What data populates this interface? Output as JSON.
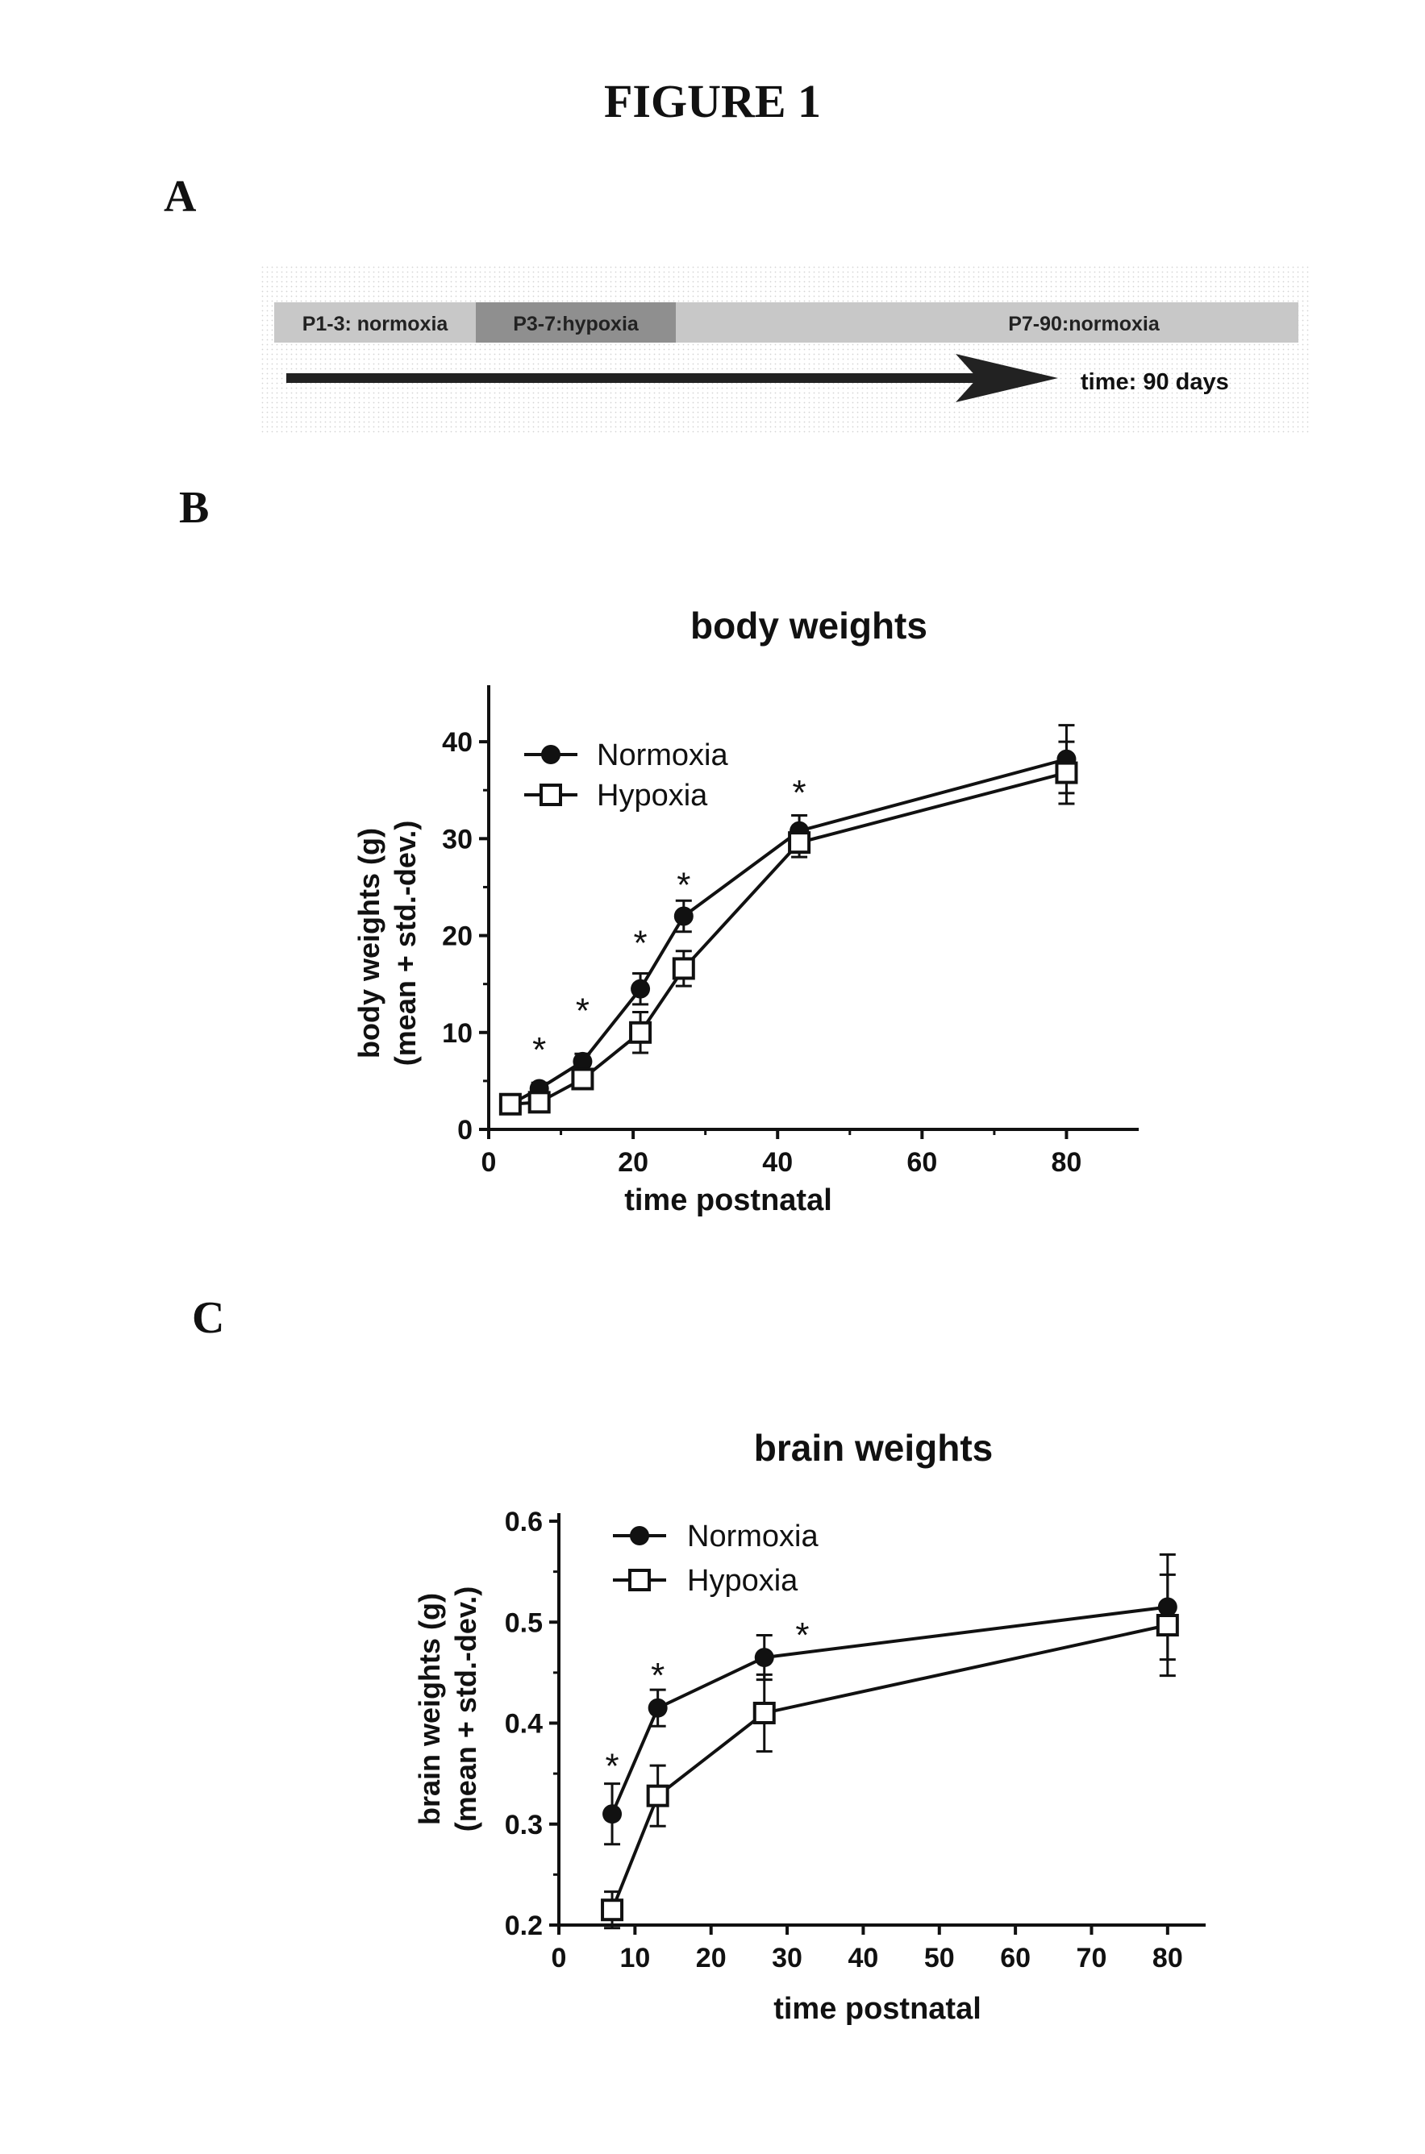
{
  "figure": {
    "title": "FIGURE 1"
  },
  "panels": {
    "a": "A",
    "b": "B",
    "c": "C"
  },
  "timeline": {
    "segments": [
      {
        "label": "P1-3: normoxia",
        "start_day": 1,
        "end_day": 3,
        "shade": "#c8c8c8"
      },
      {
        "label": "P3-7:hypoxia",
        "start_day": 3,
        "end_day": 7,
        "shade": "#8f8f8f"
      },
      {
        "label": "P7-90:normoxia",
        "start_day": 7,
        "end_day": 90,
        "shade": "#c8c8c8"
      }
    ],
    "arrow_label": "time: 90 days"
  },
  "chart_data": [
    {
      "type": "line",
      "title": "body weights",
      "xlabel": "time postnatal",
      "ylabel_lines": [
        "body weights (g)",
        "(mean + std.-dev.)"
      ],
      "xlim": [
        0,
        90
      ],
      "ylim": [
        0,
        45
      ],
      "xticks": [
        0,
        20,
        40,
        60,
        80
      ],
      "yticks": [
        0,
        10,
        20,
        30,
        40
      ],
      "legend_position": "top-left",
      "series": [
        {
          "name": "Normoxia",
          "marker": "filled-circle",
          "x": [
            3,
            7,
            13,
            21,
            27,
            43,
            80
          ],
          "y": [
            2.6,
            4.2,
            7.0,
            14.5,
            22.0,
            30.8,
            38.2
          ],
          "err": [
            0.4,
            0.6,
            0.8,
            1.6,
            1.6,
            1.6,
            3.5
          ]
        },
        {
          "name": "Hypoxia",
          "marker": "open-square",
          "x": [
            3,
            7,
            13,
            21,
            27,
            43,
            80
          ],
          "y": [
            2.6,
            2.8,
            5.2,
            10.0,
            16.6,
            29.6,
            36.8
          ],
          "err": [
            0.4,
            0.5,
            0.8,
            2.1,
            1.8,
            1.5,
            3.2
          ]
        }
      ],
      "significance": [
        {
          "x": 7,
          "y": 8.5,
          "text": "*"
        },
        {
          "x": 13,
          "y": 12.5,
          "text": "*"
        },
        {
          "x": 21,
          "y": 19.5,
          "text": "*"
        },
        {
          "x": 27,
          "y": 25.5,
          "text": "*"
        },
        {
          "x": 43,
          "y": 35.0,
          "text": "*"
        }
      ]
    },
    {
      "type": "line",
      "title": "brain weights",
      "xlabel": "time postnatal",
      "ylabel_lines": [
        "brain weights (g)",
        "(mean + std.-dev.)"
      ],
      "xlim": [
        0,
        85
      ],
      "ylim": [
        0.2,
        0.6
      ],
      "xticks": [
        0,
        10,
        20,
        30,
        40,
        50,
        60,
        70,
        80
      ],
      "yticks": [
        0.2,
        0.3,
        0.4,
        0.5,
        0.6
      ],
      "legend_position": "top-left",
      "series": [
        {
          "name": "Normoxia",
          "marker": "filled-circle",
          "x": [
            7,
            13,
            27,
            80
          ],
          "y": [
            0.31,
            0.415,
            0.465,
            0.515
          ],
          "err": [
            0.03,
            0.018,
            0.022,
            0.052
          ]
        },
        {
          "name": "Hypoxia",
          "marker": "open-square",
          "x": [
            7,
            13,
            27,
            80
          ],
          "y": [
            0.215,
            0.328,
            0.41,
            0.497
          ],
          "err": [
            0.018,
            0.03,
            0.038,
            0.05
          ]
        }
      ],
      "significance": [
        {
          "x": 7,
          "y": 0.36,
          "text": "*"
        },
        {
          "x": 13,
          "y": 0.45,
          "text": "*"
        },
        {
          "x": 32,
          "y": 0.49,
          "text": "*"
        }
      ]
    }
  ]
}
